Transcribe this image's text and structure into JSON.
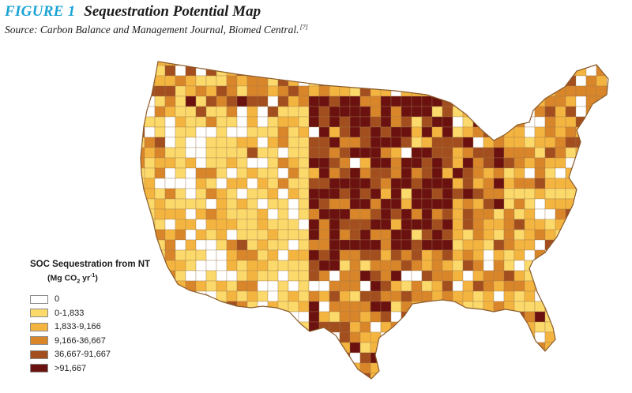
{
  "figure": {
    "label": "FIGURE 1",
    "title": "Sequestration Potential Map",
    "source": "Source: Carbon Balance and Management Journal, Biomed Central.",
    "reference": "[7]"
  },
  "legend": {
    "title": "SOC Sequestration from NT",
    "units": {
      "open": "(Mg CO",
      "sub": "2",
      "mid": " yr",
      "sup": "-1",
      "close": ")"
    },
    "items": [
      {
        "label": "0",
        "color": "#ffffff"
      },
      {
        "label": "0-1,833",
        "color": "#fbd96b"
      },
      {
        "label": "1,833-9,166",
        "color": "#f4b540"
      },
      {
        "label": "9,166-36,667",
        "color": "#d9862a"
      },
      {
        "label": "36,667-91,667",
        "color": "#a34e1e"
      },
      {
        "label": ">91,667",
        "color": "#6b1210"
      }
    ]
  },
  "map": {
    "subject": "contiguous United States county-level SOC sequestration from no-till",
    "border_color": "#8a5a2a"
  }
}
